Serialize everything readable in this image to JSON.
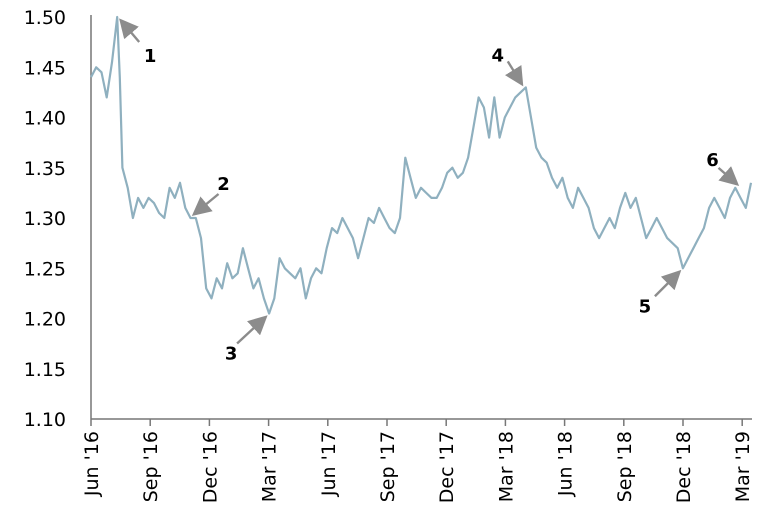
{
  "chart_data": {
    "type": "line",
    "title": "",
    "xlabel": "",
    "ylabel": "",
    "ylim": [
      1.1,
      1.5
    ],
    "yticks": [
      "1.10",
      "1.15",
      "1.20",
      "1.25",
      "1.30",
      "1.35",
      "1.40",
      "1.45",
      "1.50"
    ],
    "xticks": [
      "Jun '16",
      "Sep '16",
      "Dec '16",
      "Mar '17",
      "Jun '17",
      "Sep '17",
      "Dec '17",
      "Mar '18",
      "Jun '18",
      "Sep '18",
      "Dec '18",
      "Mar '19"
    ],
    "grid": false,
    "legend": "none",
    "colors": {
      "line": "#8fb0bf",
      "arrow": "#8c8c8c",
      "axis": "#777777"
    },
    "series": [
      {
        "values": [
          [
            0,
            1.44
          ],
          [
            1,
            1.45
          ],
          [
            2,
            1.445
          ],
          [
            3,
            1.42
          ],
          [
            4,
            1.455
          ],
          [
            5,
            1.5
          ],
          [
            5.5,
            1.44
          ],
          [
            6,
            1.35
          ],
          [
            7,
            1.33
          ],
          [
            8,
            1.3
          ],
          [
            9,
            1.32
          ],
          [
            10,
            1.31
          ],
          [
            11,
            1.32
          ],
          [
            12,
            1.315
          ],
          [
            13,
            1.305
          ],
          [
            14,
            1.3
          ],
          [
            15,
            1.33
          ],
          [
            16,
            1.32
          ],
          [
            17,
            1.335
          ],
          [
            18,
            1.31
          ],
          [
            19,
            1.3
          ],
          [
            20,
            1.3
          ],
          [
            21,
            1.28
          ],
          [
            22,
            1.23
          ],
          [
            23,
            1.22
          ],
          [
            24,
            1.24
          ],
          [
            25,
            1.23
          ],
          [
            26,
            1.255
          ],
          [
            27,
            1.24
          ],
          [
            28,
            1.245
          ],
          [
            29,
            1.27
          ],
          [
            30,
            1.25
          ],
          [
            31,
            1.23
          ],
          [
            32,
            1.24
          ],
          [
            33,
            1.22
          ],
          [
            34,
            1.205
          ],
          [
            35,
            1.22
          ],
          [
            36,
            1.26
          ],
          [
            37,
            1.25
          ],
          [
            38,
            1.245
          ],
          [
            39,
            1.24
          ],
          [
            40,
            1.25
          ],
          [
            41,
            1.22
          ],
          [
            42,
            1.24
          ],
          [
            43,
            1.25
          ],
          [
            44,
            1.245
          ],
          [
            45,
            1.27
          ],
          [
            46,
            1.29
          ],
          [
            47,
            1.285
          ],
          [
            48,
            1.3
          ],
          [
            49,
            1.29
          ],
          [
            50,
            1.28
          ],
          [
            51,
            1.26
          ],
          [
            52,
            1.28
          ],
          [
            53,
            1.3
          ],
          [
            54,
            1.295
          ],
          [
            55,
            1.31
          ],
          [
            56,
            1.3
          ],
          [
            57,
            1.29
          ],
          [
            58,
            1.285
          ],
          [
            59,
            1.3
          ],
          [
            60,
            1.36
          ],
          [
            61,
            1.34
          ],
          [
            62,
            1.32
          ],
          [
            63,
            1.33
          ],
          [
            64,
            1.325
          ],
          [
            65,
            1.32
          ],
          [
            66,
            1.32
          ],
          [
            67,
            1.33
          ],
          [
            68,
            1.345
          ],
          [
            69,
            1.35
          ],
          [
            70,
            1.34
          ],
          [
            71,
            1.345
          ],
          [
            72,
            1.36
          ],
          [
            73,
            1.39
          ],
          [
            74,
            1.42
          ],
          [
            75,
            1.41
          ],
          [
            76,
            1.38
          ],
          [
            77,
            1.42
          ],
          [
            78,
            1.38
          ],
          [
            79,
            1.4
          ],
          [
            80,
            1.41
          ],
          [
            81,
            1.42
          ],
          [
            82,
            1.425
          ],
          [
            83,
            1.43
          ],
          [
            84,
            1.4
          ],
          [
            85,
            1.37
          ],
          [
            86,
            1.36
          ],
          [
            87,
            1.355
          ],
          [
            88,
            1.34
          ],
          [
            89,
            1.33
          ],
          [
            90,
            1.34
          ],
          [
            91,
            1.32
          ],
          [
            92,
            1.31
          ],
          [
            93,
            1.33
          ],
          [
            94,
            1.32
          ],
          [
            95,
            1.31
          ],
          [
            96,
            1.29
          ],
          [
            97,
            1.28
          ],
          [
            98,
            1.29
          ],
          [
            99,
            1.3
          ],
          [
            100,
            1.29
          ],
          [
            101,
            1.31
          ],
          [
            102,
            1.325
          ],
          [
            103,
            1.31
          ],
          [
            104,
            1.32
          ],
          [
            105,
            1.3
          ],
          [
            106,
            1.28
          ],
          [
            107,
            1.29
          ],
          [
            108,
            1.3
          ],
          [
            109,
            1.29
          ],
          [
            110,
            1.28
          ],
          [
            111,
            1.275
          ],
          [
            112,
            1.27
          ],
          [
            113,
            1.25
          ],
          [
            114,
            1.26
          ],
          [
            115,
            1.27
          ],
          [
            116,
            1.28
          ],
          [
            117,
            1.29
          ],
          [
            118,
            1.31
          ],
          [
            119,
            1.32
          ],
          [
            120,
            1.31
          ],
          [
            121,
            1.3
          ],
          [
            122,
            1.32
          ],
          [
            123,
            1.33
          ],
          [
            124,
            1.32
          ],
          [
            125,
            1.31
          ],
          [
            126,
            1.335
          ]
        ]
      }
    ],
    "x_index_range": [
      0,
      126
    ],
    "annotations": [
      {
        "label": "1",
        "x": 5,
        "y": 1.5
      },
      {
        "label": "2",
        "x": 19,
        "y": 1.3
      },
      {
        "label": "3",
        "x": 34,
        "y": 1.205
      },
      {
        "label": "4",
        "x": 83,
        "y": 1.43
      },
      {
        "label": "5",
        "x": 113,
        "y": 1.25
      },
      {
        "label": "6",
        "x": 124,
        "y": 1.33
      }
    ]
  }
}
